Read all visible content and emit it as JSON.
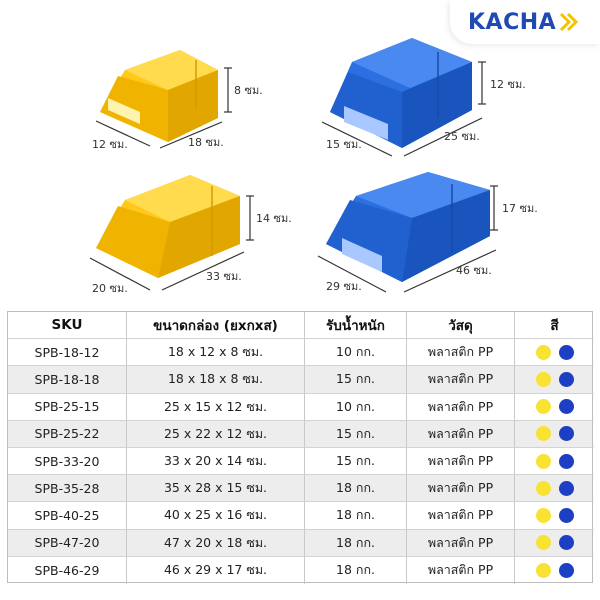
{
  "brand": {
    "name": "KACHA"
  },
  "colors": {
    "yellow": "#f9e233",
    "blue": "#1d3fc4",
    "bin_yellow": "#ffc81a",
    "bin_blue": "#2b6fe0"
  },
  "bins": [
    {
      "color": "yellow",
      "width": "12 ซม.",
      "length": "18 ซม.",
      "height": "8 ซม."
    },
    {
      "color": "blue",
      "width": "15 ซม.",
      "length": "25 ซม.",
      "height": "12 ซม."
    },
    {
      "color": "yellow",
      "width": "20 ซม.",
      "length": "33 ซม.",
      "height": "14 ซม."
    },
    {
      "color": "blue",
      "width": "29 ซม.",
      "length": "46 ซม.",
      "height": "17 ซม."
    }
  ],
  "table": {
    "headers": {
      "sku": "SKU",
      "size": "ขนาดกล่อง (ยxกxส)",
      "load": "รับน้ำหนัก",
      "material": "วัสดุ",
      "color": "สี"
    },
    "rows": [
      {
        "sku": "SPB-18-12",
        "size": "18 x 12 x 8 ซม.",
        "load": "10 กก.",
        "material": "พลาสติก PP"
      },
      {
        "sku": "SPB-18-18",
        "size": "18 x 18 x 8 ซม.",
        "load": "15 กก.",
        "material": "พลาสติก PP"
      },
      {
        "sku": "SPB-25-15",
        "size": "25 x 15 x 12 ซม.",
        "load": "10 กก.",
        "material": "พลาสติก PP"
      },
      {
        "sku": "SPB-25-22",
        "size": "25 x 22 x 12 ซม.",
        "load": "15 กก.",
        "material": "พลาสติก PP"
      },
      {
        "sku": "SPB-33-20",
        "size": "33 x 20 x 14 ซม.",
        "load": "15 กก.",
        "material": "พลาสติก PP"
      },
      {
        "sku": "SPB-35-28",
        "size": "35 x 28 x 15 ซม.",
        "load": "18 กก.",
        "material": "พลาสติก PP"
      },
      {
        "sku": "SPB-40-25",
        "size": "40 x 25 x 16 ซม.",
        "load": "18 กก.",
        "material": "พลาสติก PP"
      },
      {
        "sku": "SPB-47-20",
        "size": "47 x 20 x 18 ซม.",
        "load": "18 กก.",
        "material": "พลาสติก PP"
      },
      {
        "sku": "SPB-46-29",
        "size": "46 x 29 x 17 ซม.",
        "load": "18 กก.",
        "material": "พลาสติก PP"
      }
    ]
  }
}
